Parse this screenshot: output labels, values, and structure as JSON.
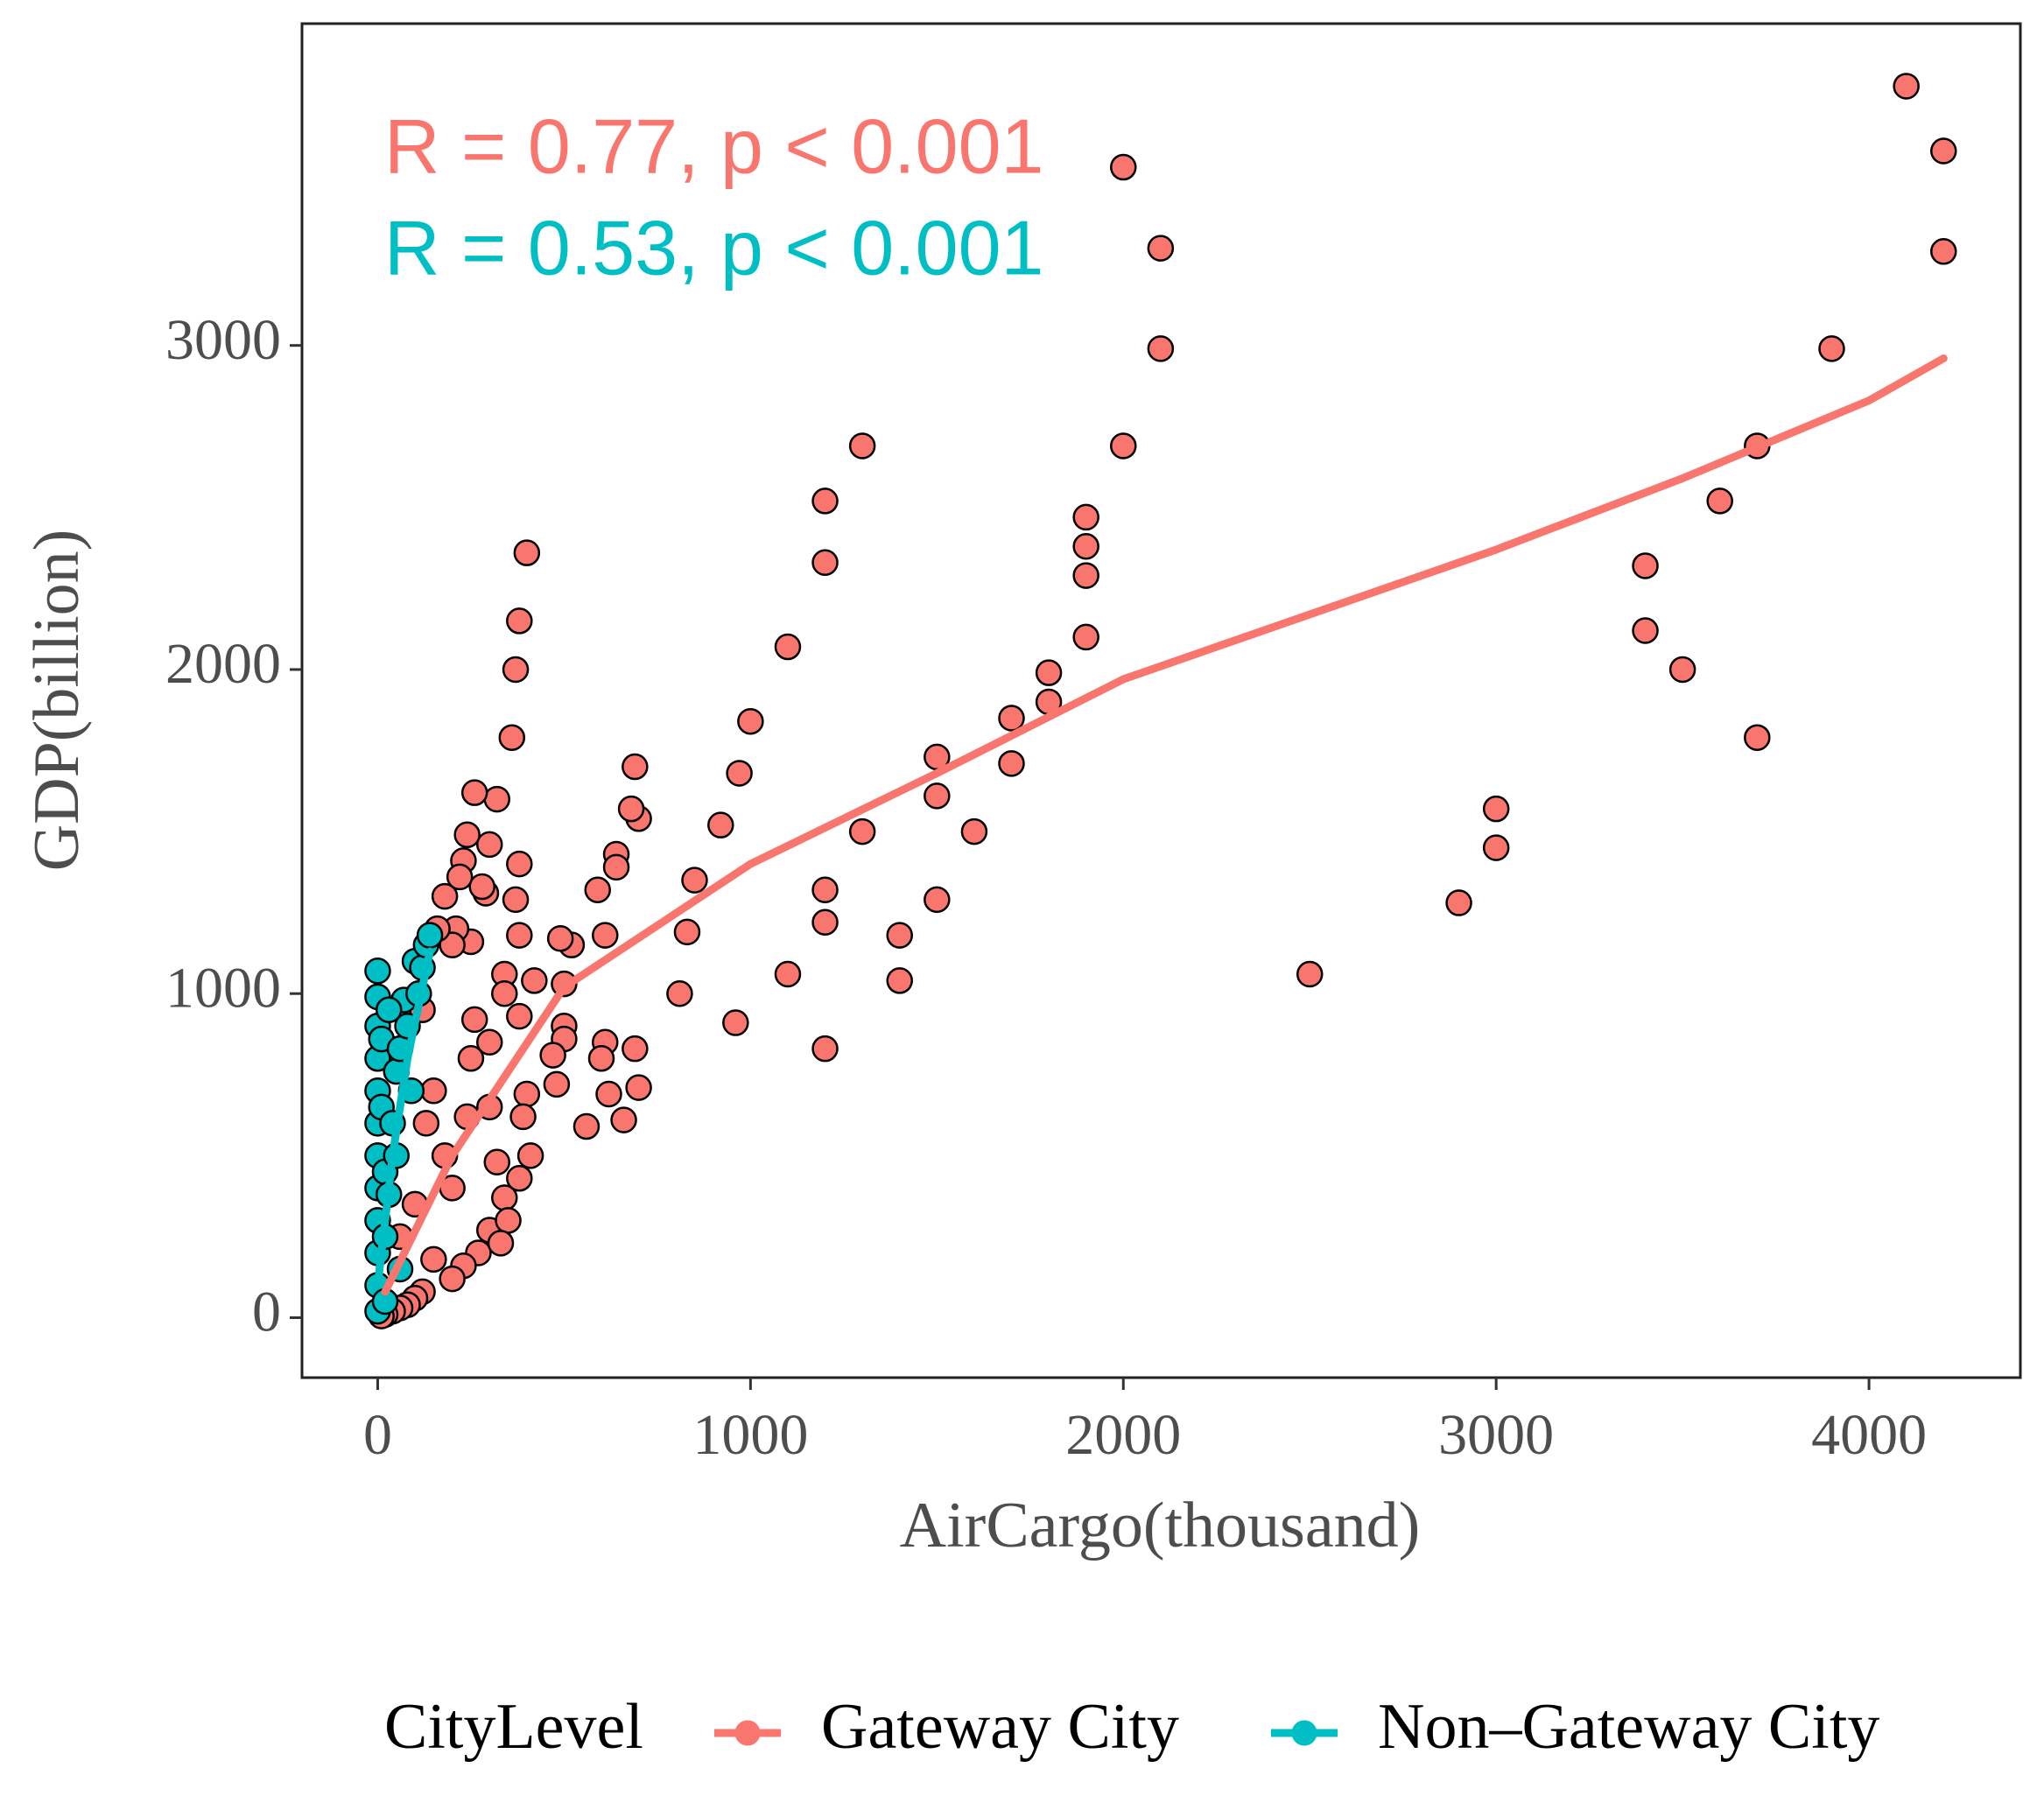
{
  "chart_data": {
    "type": "scatter",
    "x_label": "AirCargo(thousand)",
    "y_label": "GDP(billion)",
    "xlim": [
      -203,
      4406
    ],
    "ylim": [
      -185,
      3993
    ],
    "xticks": [
      0,
      1000,
      2000,
      3000,
      4000
    ],
    "yticks": [
      0,
      1000,
      2000,
      3000
    ],
    "legend_title": "CityLevel",
    "legend": "bottom",
    "annotations": [
      {
        "text": "R = 0.77, p < 0.001",
        "color": "#F8766D"
      },
      {
        "text": "R = 0.53, p < 0.001",
        "color": "#00BFC4"
      }
    ],
    "series": [
      {
        "name": "Gateway City",
        "color": "#F8766D",
        "x": [
          4100,
          4200,
          4200,
          3900,
          3700,
          3600,
          3400,
          3400,
          3500,
          3700,
          3000,
          3000,
          2900,
          2500,
          2000,
          2100,
          2100,
          2000,
          1900,
          1900,
          1900,
          1900,
          1800,
          1800,
          1700,
          1700,
          1600,
          1500,
          1500,
          1500,
          1400,
          1400,
          1300,
          1300,
          1200,
          1200,
          1200,
          1200,
          1200,
          1100,
          1100,
          1000,
          970,
          960,
          920,
          850,
          830,
          810,
          700,
          690,
          680,
          690,
          700,
          660,
          640,
          640,
          610,
          590,
          610,
          600,
          620,
          560,
          520,
          500,
          490,
          500,
          500,
          470,
          480,
          420,
          410,
          400,
          380,
          370,
          360,
          380,
          370,
          380,
          380,
          400,
          390,
          380,
          340,
          340,
          320,
          300,
          290,
          280,
          260,
          250,
          240,
          230,
          220,
          210,
          200,
          180,
          160,
          260,
          250,
          240,
          300,
          300,
          320,
          340,
          300,
          270,
          230,
          200,
          150,
          120,
          100,
          80,
          60,
          40,
          20,
          10,
          150,
          120,
          180,
          200,
          100,
          60,
          130,
          350,
          330
        ],
        "y": [
          3800,
          3600,
          3290,
          2990,
          2690,
          2520,
          2320,
          2120,
          2000,
          1790,
          1570,
          1450,
          1280,
          1060,
          3550,
          3300,
          2990,
          2690,
          2470,
          2380,
          2290,
          2100,
          1990,
          1900,
          1850,
          1710,
          1500,
          1730,
          1610,
          1290,
          1180,
          1040,
          2690,
          1500,
          2520,
          2330,
          1320,
          1220,
          830,
          2070,
          1060,
          1840,
          1680,
          910,
          1520,
          1350,
          1190,
          1000,
          1540,
          1700,
          1570,
          830,
          710,
          610,
          1430,
          1390,
          1180,
          1320,
          850,
          800,
          690,
          590,
          1150,
          1030,
          1170,
          900,
          860,
          810,
          720,
          1040,
          500,
          2360,
          2150,
          2000,
          1790,
          1400,
          1290,
          1180,
          930,
          690,
          620,
          430,
          1060,
          1000,
          1600,
          1460,
          1310,
          1330,
          1620,
          1160,
          1490,
          1410,
          1360,
          1200,
          1150,
          1300,
          1200,
          920,
          800,
          620,
          850,
          650,
          480,
          370,
          270,
          200,
          160,
          120,
          180,
          80,
          60,
          40,
          30,
          20,
          10,
          5,
          700,
          950,
          500,
          400,
          350,
          250,
          600,
          300,
          230
        ],
        "fit": {
          "x": [
            20,
            200,
            500,
            1000,
            1500,
            2000,
            2500,
            3000,
            3500,
            4000,
            4200
          ],
          "y": [
            80,
            500,
            1020,
            1400,
            1680,
            1970,
            2170,
            2370,
            2590,
            2830,
            2960
          ]
        }
      },
      {
        "name": "Non–Gateway City",
        "color": "#00BFC4",
        "x": [
          0,
          0,
          0,
          0,
          0,
          0,
          0,
          0,
          0,
          0,
          0,
          0,
          10,
          10,
          20,
          20,
          30,
          40,
          50,
          60,
          70,
          80,
          90,
          100,
          110,
          120,
          130,
          140,
          30,
          50,
          20,
          60
        ],
        "y": [
          1070,
          990,
          900,
          800,
          700,
          600,
          500,
          400,
          300,
          200,
          100,
          20,
          860,
          650,
          450,
          250,
          380,
          600,
          760,
          830,
          980,
          900,
          700,
          1100,
          1000,
          1080,
          1150,
          1180,
          950,
          500,
          50,
          150
        ],
        "fit": {
          "x": [
            0,
            40,
            80,
            140
          ],
          "y": [
            100,
            500,
            800,
            1130
          ]
        }
      }
    ]
  }
}
